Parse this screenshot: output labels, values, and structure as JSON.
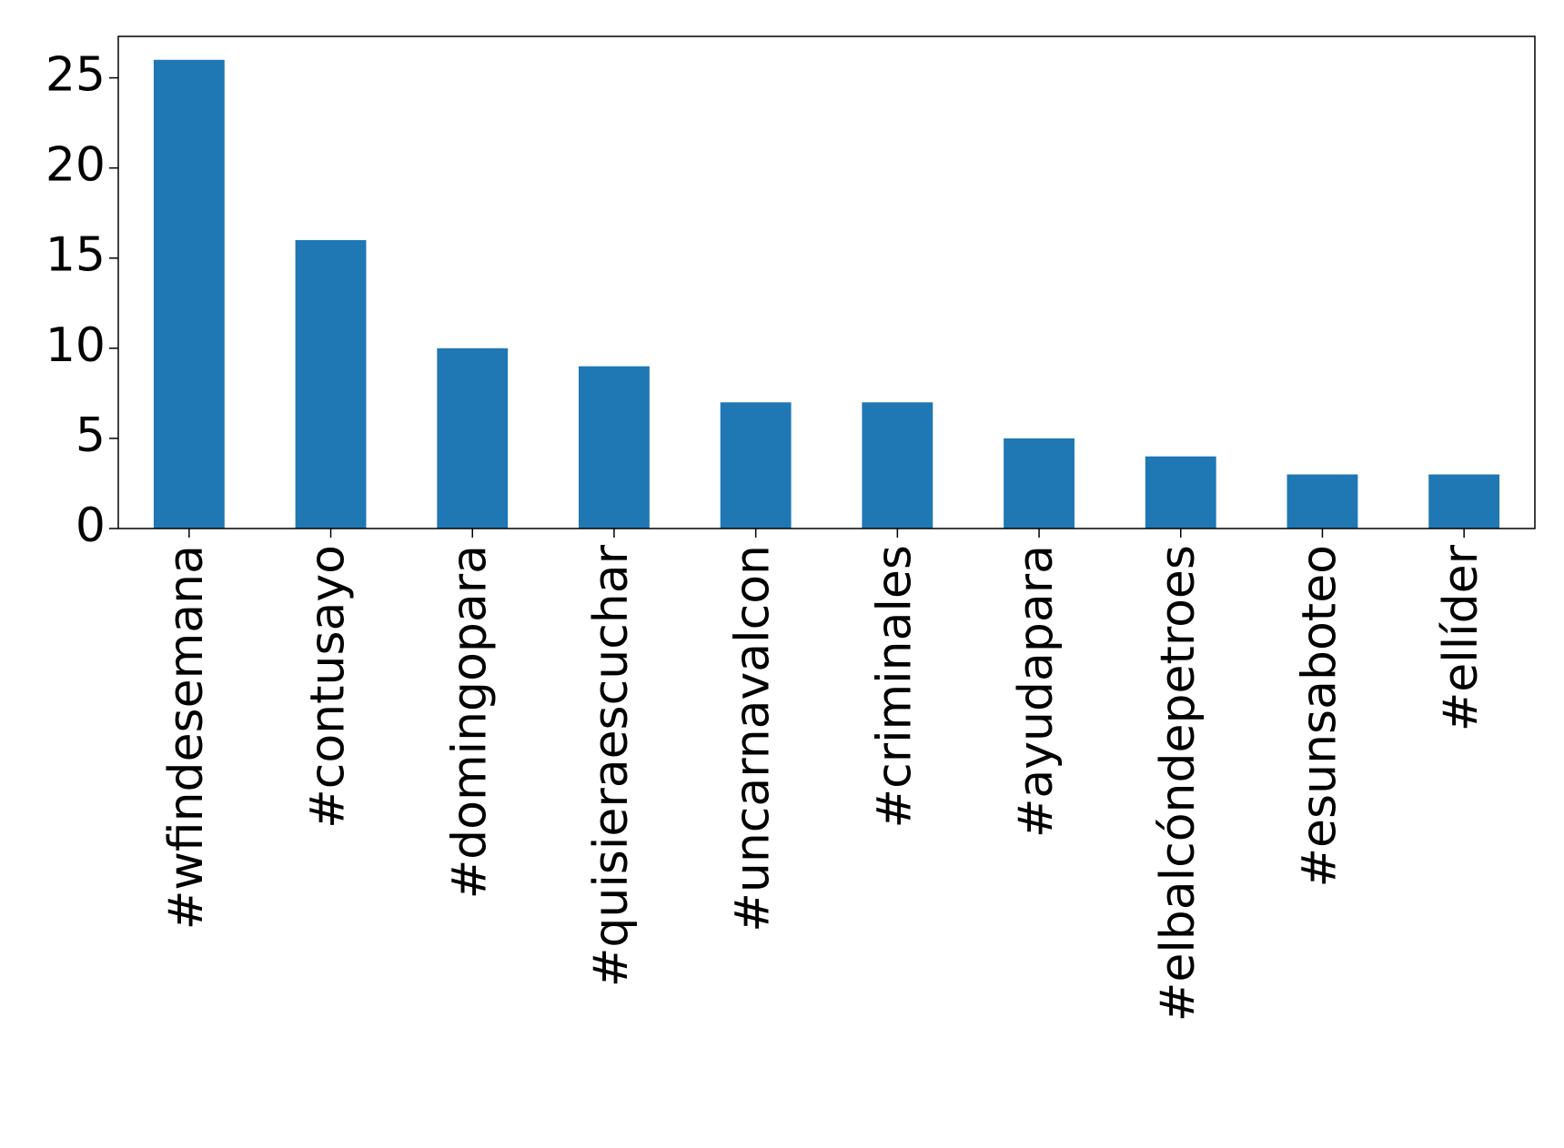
{
  "chart_data": {
    "type": "bar",
    "categories": [
      "#wfindesemana",
      "#contusayo",
      "#domingopara",
      "#quisieraescuchar",
      "#uncarnavalcon",
      "#criminales",
      "#ayudapara",
      "#elbalcóndepetroes",
      "#esunsaboteo",
      "#ellíder"
    ],
    "values": [
      26,
      16,
      10,
      9,
      7,
      7,
      5,
      4,
      3,
      3
    ],
    "color": "#1f77b4",
    "ylim": [
      0,
      27.3
    ],
    "yticks": [
      0,
      5,
      10,
      15,
      20,
      25
    ],
    "grid": false
  }
}
